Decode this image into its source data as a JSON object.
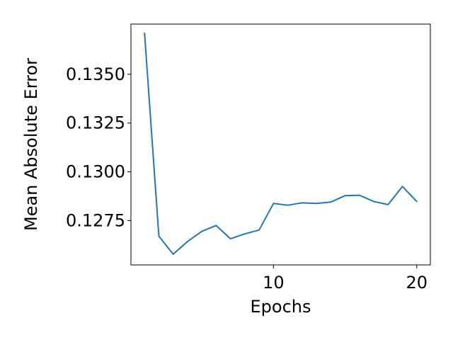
{
  "chart_data": {
    "type": "line",
    "title": "",
    "xlabel": "Epochs",
    "ylabel": "Mean Absolute Error",
    "xlim": [
      0.05,
      20.95
    ],
    "ylim": [
      0.12523,
      0.13757
    ],
    "x_ticks": [
      10,
      20
    ],
    "x_tick_labels": [
      "10",
      "20"
    ],
    "y_ticks": [
      0.1275,
      0.13,
      0.1325,
      0.135
    ],
    "y_tick_labels": [
      "0.1275",
      "0.1300",
      "0.1325",
      "0.1350"
    ],
    "grid": false,
    "legend": "none",
    "series": [
      {
        "color": "#1f77b4",
        "x": [
          1,
          2,
          3,
          4,
          5,
          6,
          7,
          8,
          9,
          10,
          11,
          12,
          13,
          14,
          15,
          16,
          17,
          18,
          19,
          20
        ],
        "y": [
          0.1371,
          0.1267,
          0.12578,
          0.12643,
          0.12695,
          0.12725,
          0.12657,
          0.12682,
          0.12702,
          0.12838,
          0.12829,
          0.12841,
          0.12838,
          0.12845,
          0.12878,
          0.1288,
          0.12848,
          0.12832,
          0.12925,
          0.12848
        ]
      }
    ]
  }
}
